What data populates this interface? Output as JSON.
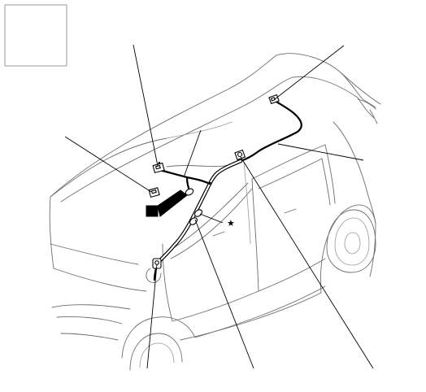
{
  "diagram": {
    "legend_box_label": "",
    "star_marker": "★"
  },
  "callouts": [
    {
      "id": "top-center-connector"
    },
    {
      "id": "left-connector"
    },
    {
      "id": "harness-upper"
    },
    {
      "id": "rear-roof-connector"
    },
    {
      "id": "roof-harness"
    },
    {
      "id": "b-pillar-connector"
    },
    {
      "id": "a-pillar-lower-connector"
    },
    {
      "id": "a-pillar-mid-connector"
    }
  ],
  "colors": {
    "harness": "#000000",
    "vehicle_outline": "#6e6e6e",
    "background": "#ffffff"
  }
}
